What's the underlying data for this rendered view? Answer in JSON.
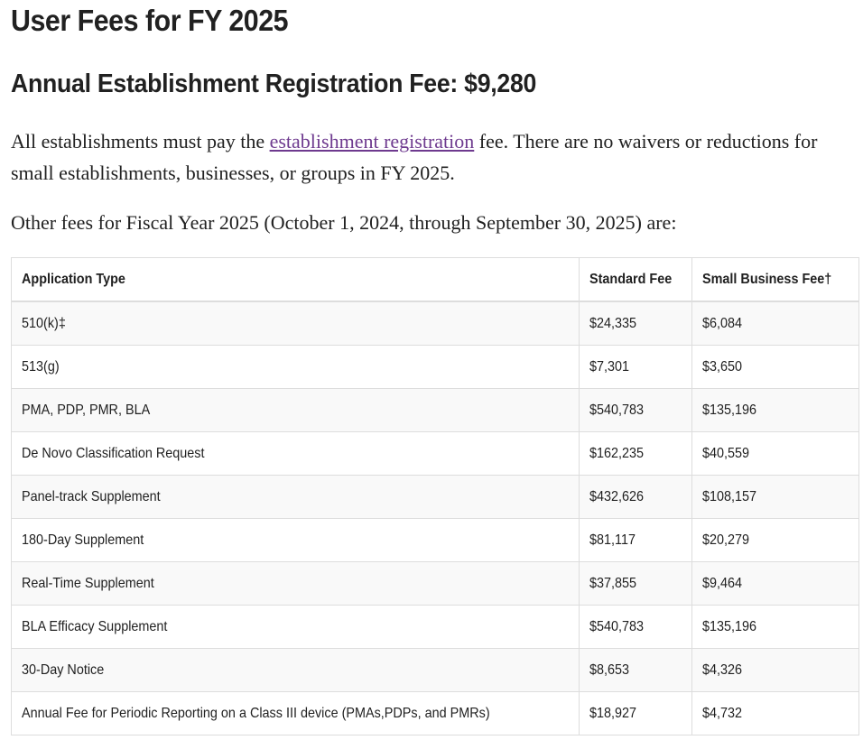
{
  "page_title": "User Fees for FY 2025",
  "subtitle": "Annual Establishment Registration Fee: $9,280",
  "intro": {
    "before_link": "All establishments must pay the ",
    "link_text": "establishment registration",
    "after_link": " fee. There are no waivers or reductions for small establishments, businesses, or groups in FY 2025."
  },
  "other_fees_text": "Other fees for Fiscal Year 2025 (October 1, 2024, through September 30, 2025) are:",
  "table": {
    "headers": [
      "Application Type",
      "Standard Fee",
      "Small Business Fee†"
    ],
    "rows": [
      [
        "510(k)‡",
        "$24,335",
        "$6,084"
      ],
      [
        "513(g)",
        "$7,301",
        "$3,650"
      ],
      [
        "PMA, PDP, PMR, BLA",
        "$540,783",
        "$135,196"
      ],
      [
        "De Novo Classification Request",
        "$162,235",
        "$40,559"
      ],
      [
        "Panel-track Supplement",
        "$432,626",
        "$108,157"
      ],
      [
        "180-Day Supplement",
        "$81,117",
        "$20,279"
      ],
      [
        "Real-Time Supplement",
        "$37,855",
        "$9,464"
      ],
      [
        "BLA Efficacy Supplement",
        "$540,783",
        "$135,196"
      ],
      [
        "30-Day Notice",
        "$8,653",
        "$4,326"
      ],
      [
        "Annual Fee for Periodic Reporting on a Class III device (PMAs,PDPs, and PMRs)",
        "$18,927",
        "$4,732"
      ]
    ]
  },
  "colors": {
    "text": "#212121",
    "link": "#6e3a8f",
    "row_stripe": "#f9f9f9",
    "border": "#dddddd"
  }
}
